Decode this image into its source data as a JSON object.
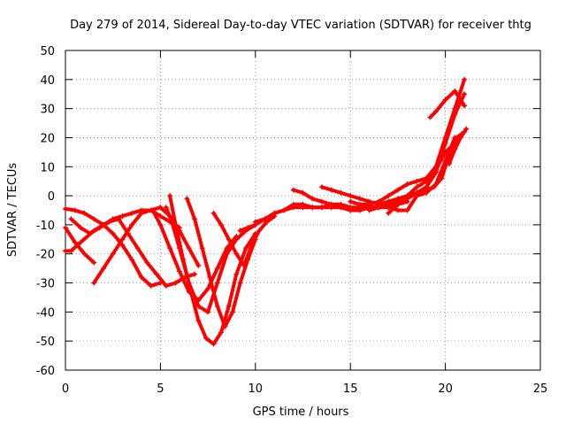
{
  "chart_data": {
    "type": "line",
    "title": "Day 279 of 2014, Sidereal Day-to-day VTEC variation (SDTVAR) for receiver thtg",
    "xlabel": "GPS time / hours",
    "ylabel": "SDTVAR / TECUs",
    "xlim": [
      0,
      25
    ],
    "ylim": [
      -60,
      50
    ],
    "xticks": [
      0,
      5,
      10,
      15,
      20,
      25
    ],
    "yticks": [
      -60,
      -50,
      -40,
      -30,
      -20,
      -10,
      0,
      10,
      20,
      30,
      40,
      50
    ],
    "grid": true,
    "line_color": "#ff0000",
    "series": [
      {
        "x": [
          0.0,
          0.5,
          1.0,
          1.5,
          2.0,
          2.5,
          3.0,
          3.5,
          4.0,
          4.5,
          5.0
        ],
        "y": [
          -4.5,
          -5,
          -6,
          -8,
          -10,
          -13,
          -17,
          -22,
          -28,
          -31,
          -30
        ]
      },
      {
        "x": [
          1.5,
          2.0,
          2.5,
          3.0,
          3.5,
          4.0,
          4.5,
          5.0,
          5.5,
          6.0,
          6.5,
          7.0
        ],
        "y": [
          -30,
          -25,
          -20,
          -15,
          -10,
          -6,
          -5,
          -4,
          -7,
          -12,
          -18,
          -24
        ]
      },
      {
        "x": [
          0.0,
          0.3,
          0.8,
          1.5,
          2.0,
          2.5,
          3.0,
          3.5,
          4.0,
          4.5,
          5.0,
          5.5,
          6.0
        ],
        "y": [
          -19,
          -19,
          -16,
          -12,
          -10,
          -8,
          -7,
          -6,
          -5,
          -5,
          -7,
          -9,
          -11
        ]
      },
      {
        "x": [
          0.0,
          0.5,
          1.0,
          1.5
        ],
        "y": [
          -11,
          -16,
          -20,
          -23
        ]
      },
      {
        "x": [
          0.3,
          0.8,
          1.3,
          1.8,
          2.3,
          2.8,
          3.3,
          3.8,
          4.3,
          4.8,
          5.3,
          5.8,
          6.3,
          6.8
        ],
        "y": [
          -8,
          -11,
          -13,
          -11,
          -9,
          -8,
          -13,
          -18,
          -23,
          -27,
          -31,
          -30,
          -28,
          -27
        ]
      },
      {
        "x": [
          4.6,
          5.0,
          5.5,
          6.0,
          6.5,
          7.0,
          7.5,
          8.0,
          8.5,
          9.0
        ],
        "y": [
          -5,
          -10,
          -18,
          -26,
          -33,
          -36,
          -32,
          -25,
          -18,
          -14
        ]
      },
      {
        "x": [
          5.3,
          5.6,
          6.0,
          6.5,
          7.0,
          7.5,
          8.0,
          8.5,
          9.0,
          9.5,
          10.0
        ],
        "y": [
          -4,
          -9,
          -18,
          -30,
          -38,
          -40,
          -30,
          -20,
          -15,
          -12,
          -10
        ]
      },
      {
        "x": [
          5.5,
          5.8,
          6.2,
          6.6,
          7.0,
          7.4,
          7.8,
          8.2,
          8.6,
          9.0,
          9.5,
          10.0
        ],
        "y": [
          0,
          -10,
          -22,
          -33,
          -43,
          -49,
          -51,
          -47,
          -38,
          -27,
          -18,
          -13
        ]
      },
      {
        "x": [
          6.4,
          6.8,
          7.2,
          7.6,
          8.0,
          8.4,
          8.8,
          9.2,
          9.6,
          10.0
        ],
        "y": [
          -1,
          -8,
          -18,
          -28,
          -38,
          -45,
          -40,
          -30,
          -22,
          -15
        ]
      },
      {
        "x": [
          7.8,
          8.2,
          8.6,
          9.0,
          9.4,
          9.8,
          10.2,
          10.6,
          11.0
        ],
        "y": [
          -6,
          -10,
          -15,
          -20,
          -24,
          -17,
          -12,
          -9,
          -7
        ]
      },
      {
        "x": [
          9.2,
          9.6,
          10.0,
          10.5,
          11.0,
          11.5,
          12.0,
          12.5,
          13.0,
          13.5,
          14.0,
          14.5,
          15.0,
          15.5,
          16.0,
          16.5,
          17.0
        ],
        "y": [
          -12,
          -11,
          -10,
          -8,
          -6,
          -5,
          -4,
          -4,
          -4,
          -4,
          -3,
          -3,
          -4,
          -4,
          -4,
          -4,
          -3
        ]
      },
      {
        "x": [
          10.0,
          10.5,
          11.0,
          11.5,
          12.0,
          12.5,
          13.0,
          13.5,
          14.0,
          14.5,
          15.0,
          15.5,
          16.0,
          16.5,
          17.0
        ],
        "y": [
          -9,
          -8,
          -6,
          -5,
          -3,
          -3,
          -4,
          -4,
          -4,
          -4,
          -5,
          -5,
          -4,
          -4,
          -3
        ]
      },
      {
        "x": [
          12.0,
          12.5,
          13.0,
          13.5,
          14.0,
          14.5,
          15.0,
          15.5,
          16.0,
          16.5,
          17.0,
          17.5,
          18.0
        ],
        "y": [
          2,
          1,
          -1,
          -2,
          -3,
          -4,
          -5,
          -5,
          -4,
          -4,
          -4,
          -3,
          -2
        ]
      },
      {
        "x": [
          13.5,
          14.0,
          14.5,
          15.0,
          15.5,
          16.0,
          16.5,
          17.0,
          17.5,
          18.0,
          18.5,
          19.0
        ],
        "y": [
          3,
          2,
          1,
          0,
          -1,
          -2,
          -3,
          -2,
          -1,
          0,
          1,
          2
        ]
      },
      {
        "x": [
          15.0,
          15.5,
          16.0,
          16.5,
          17.0,
          17.5,
          18.0,
          18.5,
          19.0,
          19.5,
          20.0,
          20.5,
          21.0
        ],
        "y": [
          -2,
          -3,
          -3,
          -2,
          0,
          2,
          4,
          5,
          6,
          10,
          20,
          30,
          40
        ]
      },
      {
        "x": [
          16.0,
          16.5,
          17.0,
          17.5,
          18.0,
          18.5,
          19.0,
          19.5,
          20.0,
          20.5,
          21.0
        ],
        "y": [
          -5,
          -4,
          -3,
          -2,
          -1,
          1,
          3,
          8,
          18,
          28,
          35
        ]
      },
      {
        "x": [
          17.0,
          17.5,
          18.0,
          18.5,
          19.0,
          19.5,
          20.0,
          20.5,
          21.0
        ],
        "y": [
          -6,
          -3,
          0,
          3,
          5,
          9,
          15,
          18,
          22
        ]
      },
      {
        "x": [
          17.0,
          17.5,
          18.0,
          18.5,
          19.0,
          19.5,
          20.0,
          20.5
        ],
        "y": [
          -4,
          -5,
          -5,
          0,
          1,
          4,
          12,
          20
        ]
      },
      {
        "x": [
          19.2,
          19.5,
          20.0,
          20.5,
          21.0
        ],
        "y": [
          27,
          29,
          33,
          36,
          31
        ]
      },
      {
        "x": [
          19.0,
          19.4,
          19.8,
          20.2,
          20.6,
          21.0
        ],
        "y": [
          2,
          3,
          6,
          14,
          20,
          22
        ]
      },
      {
        "x": [
          20.2,
          20.5,
          20.8,
          21.1
        ],
        "y": [
          11,
          16,
          20,
          23
        ]
      }
    ]
  }
}
